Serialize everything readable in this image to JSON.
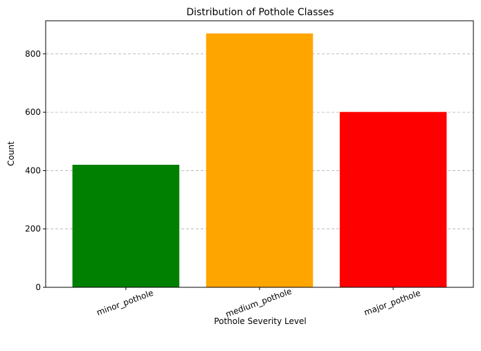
{
  "chart_data": {
    "type": "bar",
    "title": "Distribution of Pothole Classes",
    "xlabel": "Pothole Severity Level",
    "ylabel": "Count",
    "categories": [
      "minor_pothole",
      "medium_pothole",
      "major_pothole"
    ],
    "values": [
      420,
      870,
      601
    ],
    "colors": [
      "#008000",
      "#ffa500",
      "#ff0000"
    ],
    "ylim": [
      0,
      913.5
    ],
    "yticks": [
      0,
      200,
      400,
      600,
      800
    ],
    "grid": "y-dashed",
    "xtick_rotation": -20
  }
}
